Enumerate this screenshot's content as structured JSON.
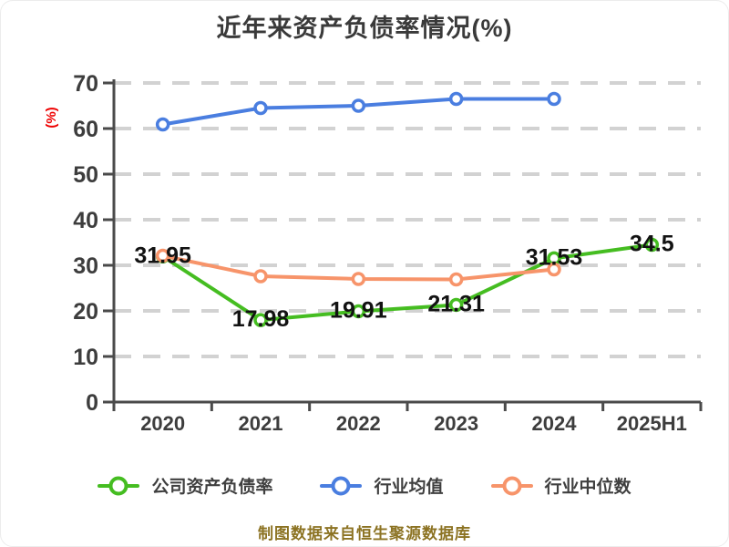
{
  "title": "近年来资产负债率情况(%)",
  "footer_note": "制图数据来自恒生聚源数据库",
  "colors": {
    "company": "#45bd21",
    "industry_avg": "#4a7ee0",
    "industry_median": "#f7946a",
    "axis": "#4a4a4a",
    "grid": "#d2d2d2",
    "tick_label": "#3d3d3d",
    "value_label": "#121212",
    "ylabel": "#ee0000",
    "marker_fill": "#ffffff"
  },
  "chart_data": {
    "type": "line",
    "title": "近年来资产负债率情况(%)",
    "ylabel": "(%)",
    "xlabel": "",
    "categories": [
      "2020",
      "2021",
      "2022",
      "2023",
      "2024",
      "2025H1"
    ],
    "y_ticks": [
      0,
      10,
      20,
      30,
      40,
      50,
      60,
      70
    ],
    "ylim": [
      0,
      70
    ],
    "grid": "horizontal-dashed",
    "legend_position": "bottom",
    "series": [
      {
        "name": "公司资产负债率",
        "color_key": "company",
        "values": [
          31.95,
          17.98,
          19.91,
          21.31,
          31.53,
          34.5
        ],
        "labels": [
          "31.95",
          "17.98",
          "19.91",
          "21.31",
          "31.53",
          "34.5"
        ]
      },
      {
        "name": "行业均值",
        "color_key": "industry_avg",
        "values": [
          60.9,
          64.5,
          65.0,
          66.5,
          66.5,
          null
        ],
        "labels": []
      },
      {
        "name": "行业中位数",
        "color_key": "industry_median",
        "values": [
          32.1,
          27.6,
          27.0,
          26.9,
          29.1,
          null
        ],
        "labels": []
      }
    ]
  },
  "legend": {
    "items": [
      {
        "label": "公司资产负债率",
        "color_key": "company"
      },
      {
        "label": "行业均值",
        "color_key": "industry_avg"
      },
      {
        "label": "行业中位数",
        "color_key": "industry_median"
      }
    ]
  }
}
